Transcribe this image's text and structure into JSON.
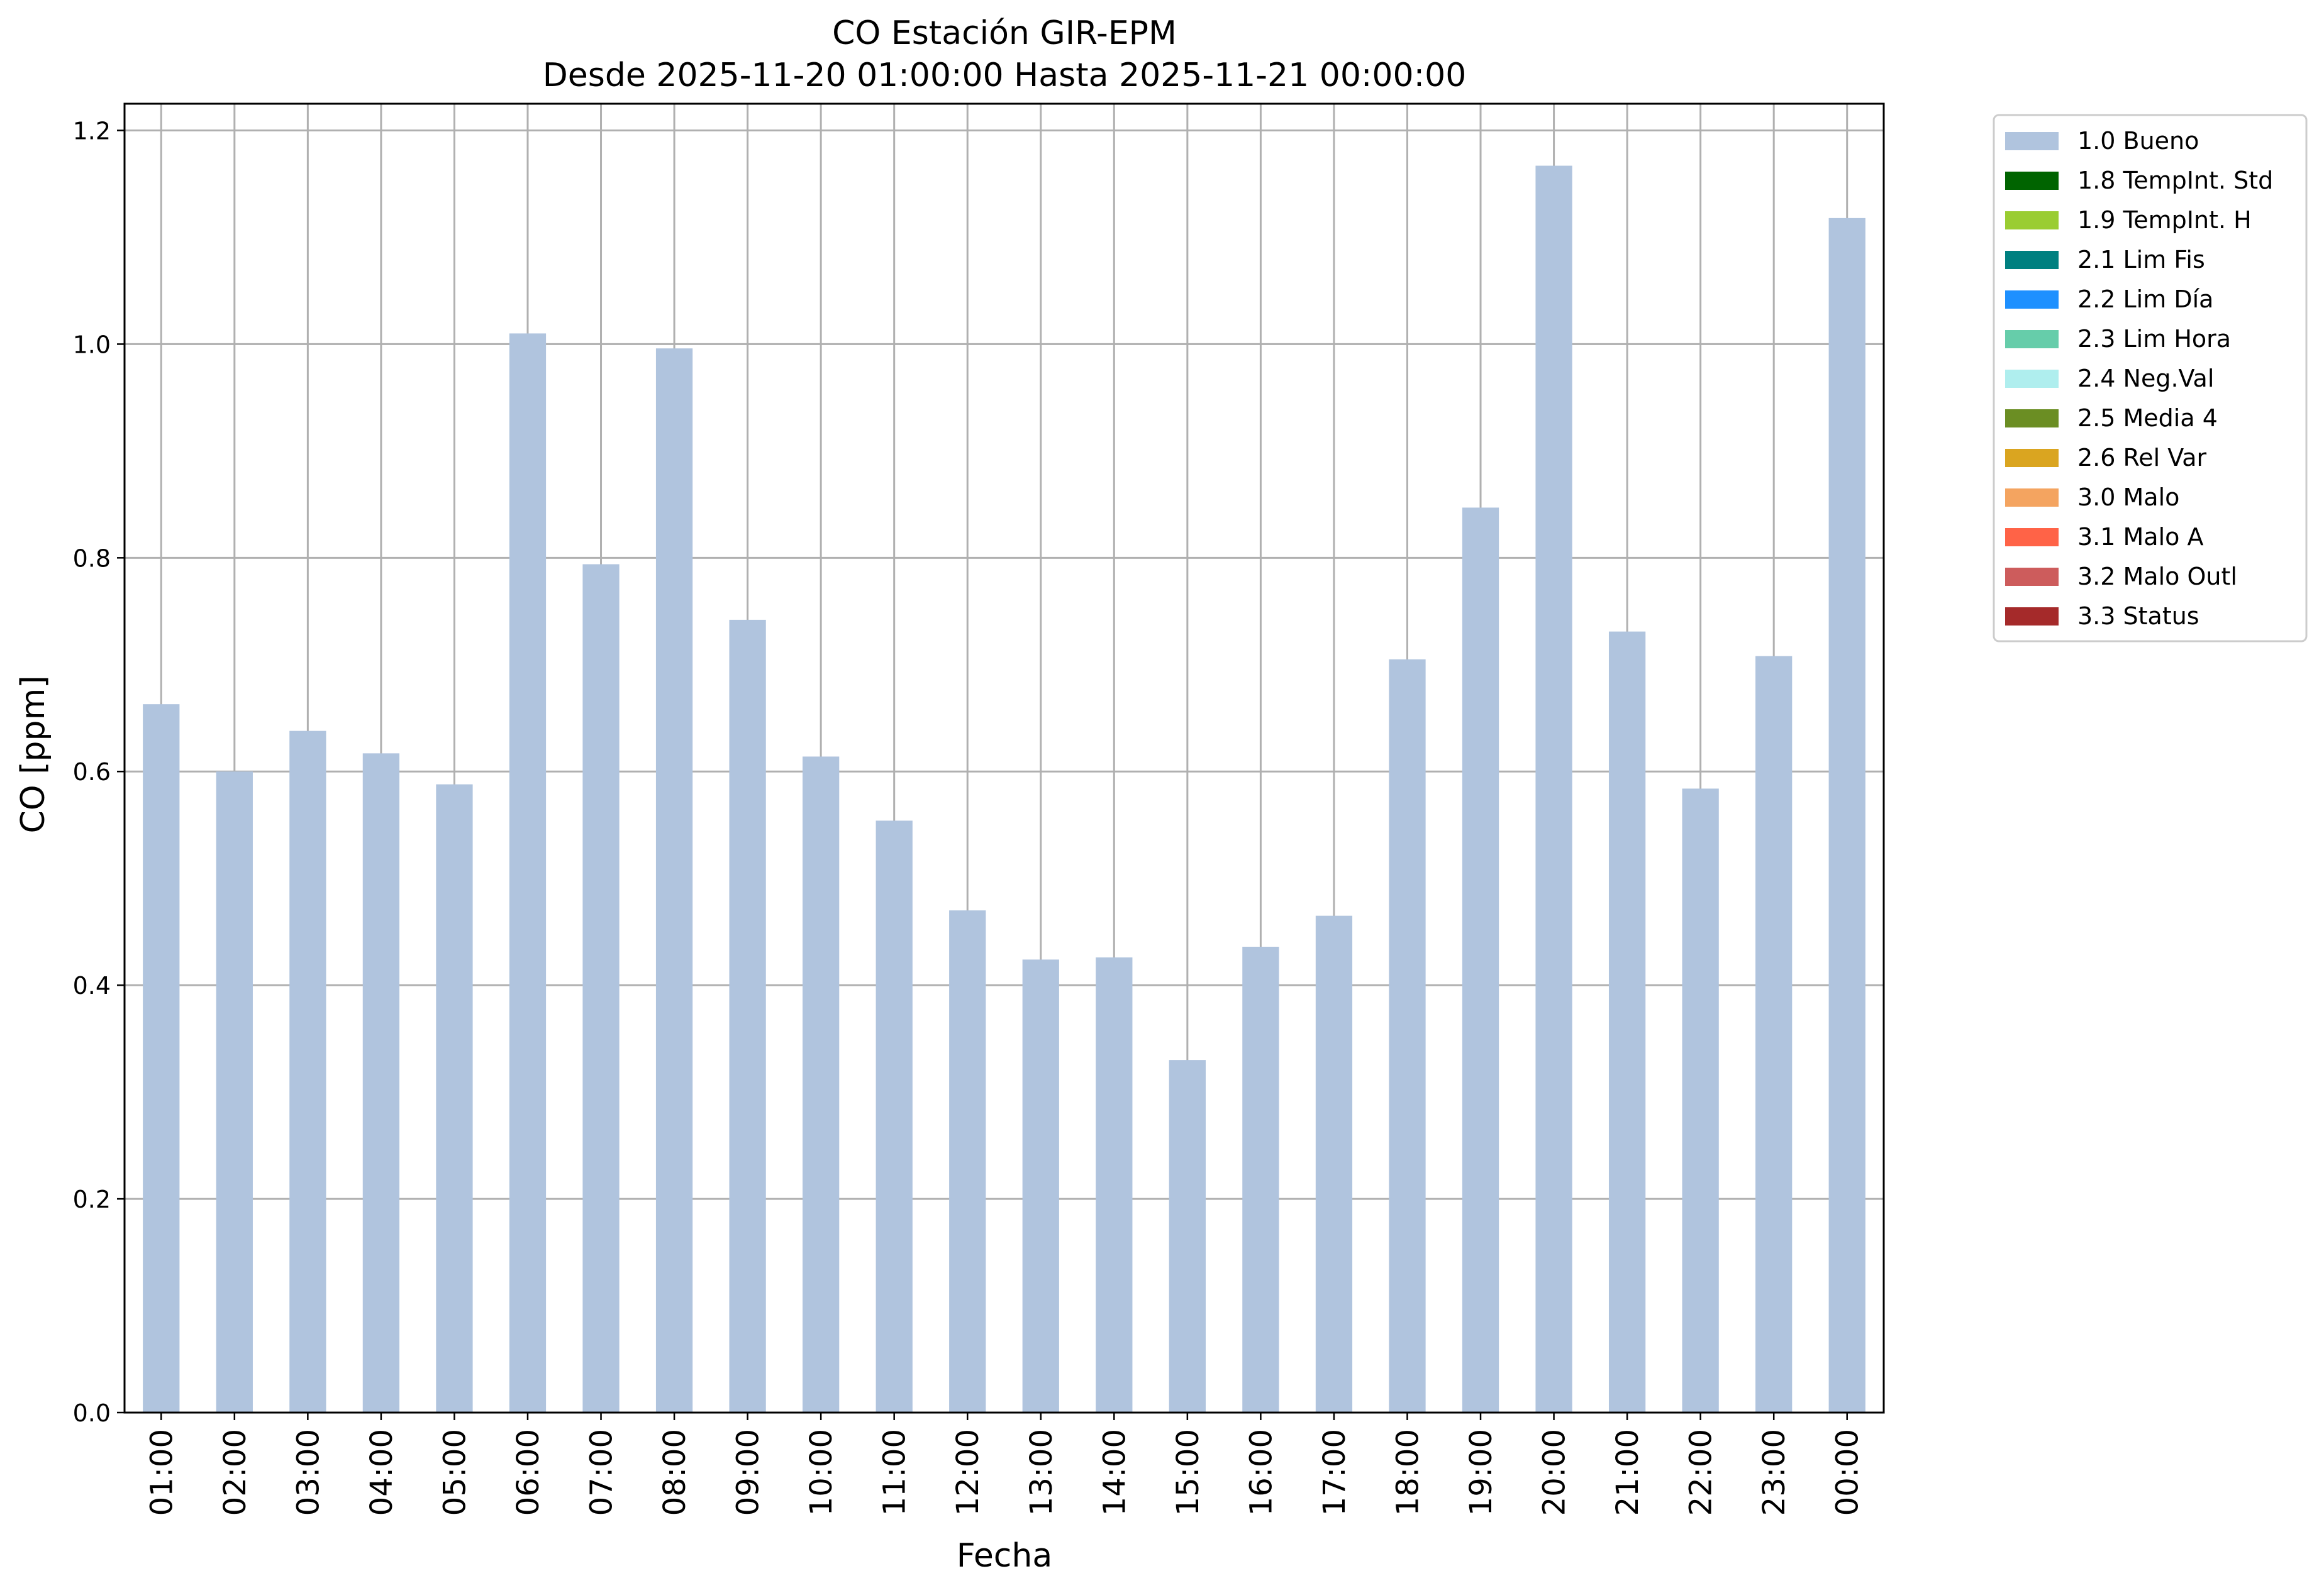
{
  "chart_data": {
    "type": "bar",
    "title": "CO Estación GIR-EPM",
    "subtitle": "Desde 2025-11-20 01:00:00 Hasta 2025-11-21 00:00:00",
    "xlabel": "Fecha",
    "ylabel": "CO [ppm]",
    "ylim": [
      0,
      1.225
    ],
    "yticks": [
      "0.0",
      "0.2",
      "0.4",
      "0.6",
      "0.8",
      "1.0",
      "1.2"
    ],
    "grid": true,
    "legend_position": "outside-top-right",
    "categories": [
      "01:00",
      "02:00",
      "03:00",
      "04:00",
      "05:00",
      "06:00",
      "07:00",
      "08:00",
      "09:00",
      "10:00",
      "11:00",
      "12:00",
      "13:00",
      "14:00",
      "15:00",
      "16:00",
      "17:00",
      "18:00",
      "19:00",
      "20:00",
      "21:00",
      "22:00",
      "23:00",
      "00:00"
    ],
    "series": [
      {
        "name": "1.0 Bueno",
        "color": "#b0c4de",
        "values": [
          0.663,
          0.6,
          0.638,
          0.617,
          0.588,
          1.01,
          0.794,
          0.996,
          0.742,
          0.614,
          0.554,
          0.47,
          0.424,
          0.426,
          0.33,
          0.436,
          0.465,
          0.705,
          0.847,
          1.167,
          0.731,
          0.584,
          0.708,
          1.118
        ]
      }
    ],
    "legend": [
      {
        "label": "1.0 Bueno",
        "color": "#b0c4de"
      },
      {
        "label": "1.8 TempInt. Std",
        "color": "#006400"
      },
      {
        "label": "1.9 TempInt. H",
        "color": "#9acd32"
      },
      {
        "label": "2.1 Lim Fis",
        "color": "#008080"
      },
      {
        "label": "2.2 Lim Día",
        "color": "#1e90ff"
      },
      {
        "label": "2.3 Lim Hora",
        "color": "#66cdaa"
      },
      {
        "label": "2.4 Neg.Val",
        "color": "#afeeee"
      },
      {
        "label": "2.5 Media 4",
        "color": "#6b8e23"
      },
      {
        "label": "2.6 Rel Var",
        "color": "#daa520"
      },
      {
        "label": "3.0 Malo",
        "color": "#f4a460"
      },
      {
        "label": "3.1 Malo A",
        "color": "#ff6347"
      },
      {
        "label": "3.2 Malo Outl",
        "color": "#cd5c5c"
      },
      {
        "label": "3.3 Status",
        "color": "#a52a2a"
      }
    ]
  }
}
